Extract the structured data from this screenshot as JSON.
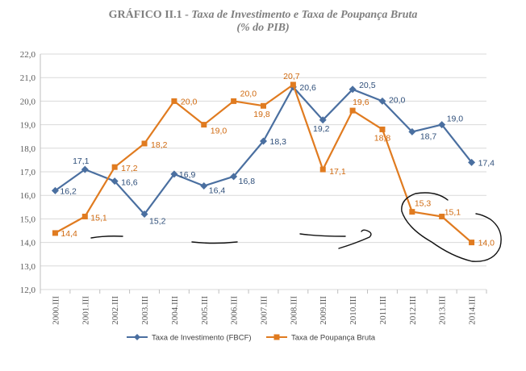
{
  "title": {
    "prefix": "GRÁFICO II.1 - ",
    "main": "Taxa de Investimento e Taxa de Poupança Bruta",
    "subtitle": "(% do PIB)"
  },
  "chart_data": {
    "type": "line",
    "categories": [
      "2000.III",
      "2001.III",
      "2002.III",
      "2003.III",
      "2004.III",
      "2005.III",
      "2006.III",
      "2007.III",
      "2008.III",
      "2009.III",
      "2010.III",
      "2011.III",
      "2012.III",
      "2013.III",
      "2014.III"
    ],
    "ylim": [
      12.0,
      22.0
    ],
    "yticks": [
      "12,0",
      "13,0",
      "14,0",
      "15,0",
      "16,0",
      "17,0",
      "18,0",
      "19,0",
      "20,0",
      "21,0",
      "22,0"
    ],
    "grid": "horizontal",
    "legend": "bottom",
    "series": [
      {
        "name": "Taxa de Investimento (FBCF)",
        "color": "#4a6fa0",
        "marker": "diamond",
        "values": [
          16.2,
          17.1,
          16.6,
          15.2,
          16.9,
          16.4,
          16.8,
          18.3,
          20.6,
          19.2,
          20.5,
          20.0,
          18.7,
          19.0,
          17.4
        ],
        "labels": [
          "16,2",
          "17,1",
          "16,6",
          "15,2",
          "16,9",
          "16,4",
          "16,8",
          "18,3",
          "20,6",
          "19,2",
          "20,5",
          "20,0",
          "18,7",
          "19,0",
          "17,4"
        ]
      },
      {
        "name": "Taxa de Poupança Bruta",
        "color": "#e07b20",
        "marker": "square",
        "values": [
          14.4,
          15.1,
          17.2,
          18.2,
          20.0,
          19.0,
          20.0,
          19.8,
          20.7,
          17.1,
          19.6,
          18.8,
          15.3,
          15.1,
          14.0
        ],
        "labels": [
          "14,4",
          "15,1",
          "17,2",
          "18,2",
          "20,0",
          "19,0",
          "20,0",
          "19,8",
          "20,7",
          "17,1",
          "19,6",
          "18,8",
          "15,3",
          "15,1",
          "14,0"
        ]
      }
    ],
    "annotations": [
      "hand-drawn underline strokes",
      "hand-drawn arrow",
      "hand-drawn circle around 2012–2014 savings values"
    ]
  }
}
